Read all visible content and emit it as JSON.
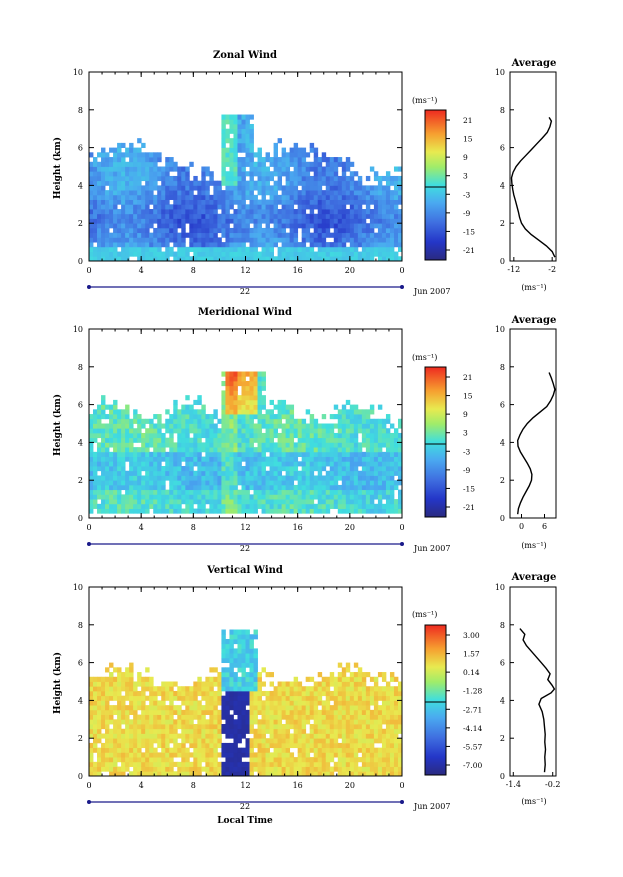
{
  "figure": {
    "x_axis_label": "Local Time",
    "date_label": "Jun 2007"
  },
  "chart_data": [
    {
      "type": "heatmap",
      "title": "Zonal Wind",
      "xlabel": "",
      "ylabel": "Height (km)",
      "x_ticks": [
        "0",
        "4",
        "8",
        "12",
        "16",
        "20",
        "0"
      ],
      "day_label": "22",
      "y_ticks": [
        "0",
        "2",
        "4",
        "6",
        "8",
        "10"
      ],
      "xlim": [
        0,
        24
      ],
      "ylim": [
        0,
        10
      ],
      "colorbar": {
        "unit": "(ms⁻¹)",
        "ticks": [
          "21",
          "15",
          "9",
          "3",
          "-3",
          "-9",
          "-15",
          "-21"
        ],
        "min": -24,
        "max": 24
      },
      "profile": {
        "title": "Average",
        "x_ticks": [
          "-12",
          "-2"
        ],
        "xlim": [
          -13,
          -1
        ],
        "unit": "(ms⁻¹)",
        "heights": [
          0.2,
          0.5,
          0.8,
          1.1,
          1.4,
          1.7,
          2.0,
          2.3,
          2.6,
          2.9,
          3.2,
          3.5,
          3.8,
          4.1,
          4.4,
          4.7,
          5.0,
          5.3,
          5.6,
          5.9,
          6.2,
          6.5,
          6.8,
          7.1,
          7.4,
          7.6
        ],
        "values": [
          -1.3,
          -2.0,
          -3.5,
          -5.5,
          -7.5,
          -9.0,
          -10.0,
          -10.5,
          -10.8,
          -11.2,
          -11.6,
          -12.0,
          -12.3,
          -12.5,
          -12.6,
          -12.2,
          -11.4,
          -10.2,
          -8.8,
          -7.4,
          -6.0,
          -4.6,
          -3.3,
          -2.6,
          -2.2,
          -2.8
        ]
      }
    },
    {
      "type": "heatmap",
      "title": "Meridional Wind",
      "xlabel": "",
      "ylabel": "Height (km)",
      "x_ticks": [
        "0",
        "4",
        "8",
        "12",
        "16",
        "20",
        "0"
      ],
      "day_label": "22",
      "y_ticks": [
        "0",
        "2",
        "4",
        "6",
        "8",
        "10"
      ],
      "xlim": [
        0,
        24
      ],
      "ylim": [
        0,
        10
      ],
      "colorbar": {
        "unit": "(ms⁻¹)",
        "ticks": [
          "21",
          "15",
          "9",
          "3",
          "-3",
          "-9",
          "-15",
          "-21"
        ],
        "min": -24,
        "max": 24
      },
      "profile": {
        "title": "Average",
        "x_ticks": [
          "0",
          "6"
        ],
        "xlim": [
          -3,
          9
        ],
        "unit": "(ms⁻¹)",
        "heights": [
          0.2,
          0.5,
          0.8,
          1.1,
          1.4,
          1.7,
          2.0,
          2.3,
          2.6,
          2.9,
          3.2,
          3.5,
          3.8,
          4.1,
          4.4,
          4.7,
          5.0,
          5.3,
          5.6,
          5.9,
          6.2,
          6.5,
          6.8,
          7.1,
          7.4,
          7.7
        ],
        "values": [
          -1.0,
          -0.8,
          -0.3,
          0.4,
          1.2,
          2.0,
          2.6,
          2.7,
          2.3,
          1.5,
          0.6,
          -0.3,
          -0.9,
          -1.0,
          -0.4,
          0.4,
          1.5,
          3.0,
          4.8,
          6.6,
          7.6,
          8.3,
          8.7,
          8.3,
          7.8,
          7.2
        ]
      }
    },
    {
      "type": "heatmap",
      "title": "Vertical Wind",
      "xlabel": "Local Time",
      "ylabel": "Height (km)",
      "x_ticks": [
        "0",
        "4",
        "8",
        "12",
        "16",
        "20",
        "0"
      ],
      "day_label": "22",
      "y_ticks": [
        "0",
        "2",
        "4",
        "6",
        "8",
        "10"
      ],
      "xlim": [
        0,
        24
      ],
      "ylim": [
        0,
        10
      ],
      "colorbar": {
        "unit": "(ms⁻¹)",
        "ticks": [
          "3.00",
          "1.57",
          "0.14",
          "-1.28",
          "-2.71",
          "-4.14",
          "-5.57",
          "-7.00"
        ],
        "min": -7.7,
        "max": 3.7
      },
      "profile": {
        "title": "Average",
        "x_ticks": [
          "-1.4",
          "-0.2"
        ],
        "xlim": [
          -1.5,
          -0.1
        ],
        "unit": "(ms⁻¹)",
        "heights": [
          0.2,
          0.6,
          1.0,
          1.4,
          1.8,
          2.2,
          2.6,
          3.0,
          3.4,
          3.8,
          4.1,
          4.4,
          4.6,
          4.8,
          5.1,
          5.4,
          5.7,
          6.0,
          6.3,
          6.6,
          6.9,
          7.2,
          7.5,
          7.8
        ],
        "values": [
          -0.45,
          -0.43,
          -0.44,
          -0.42,
          -0.44,
          -0.43,
          -0.45,
          -0.47,
          -0.52,
          -0.62,
          -0.55,
          -0.25,
          -0.15,
          -0.22,
          -0.35,
          -0.28,
          -0.4,
          -0.55,
          -0.7,
          -0.85,
          -1.0,
          -1.1,
          -1.05,
          -1.2
        ]
      }
    }
  ]
}
